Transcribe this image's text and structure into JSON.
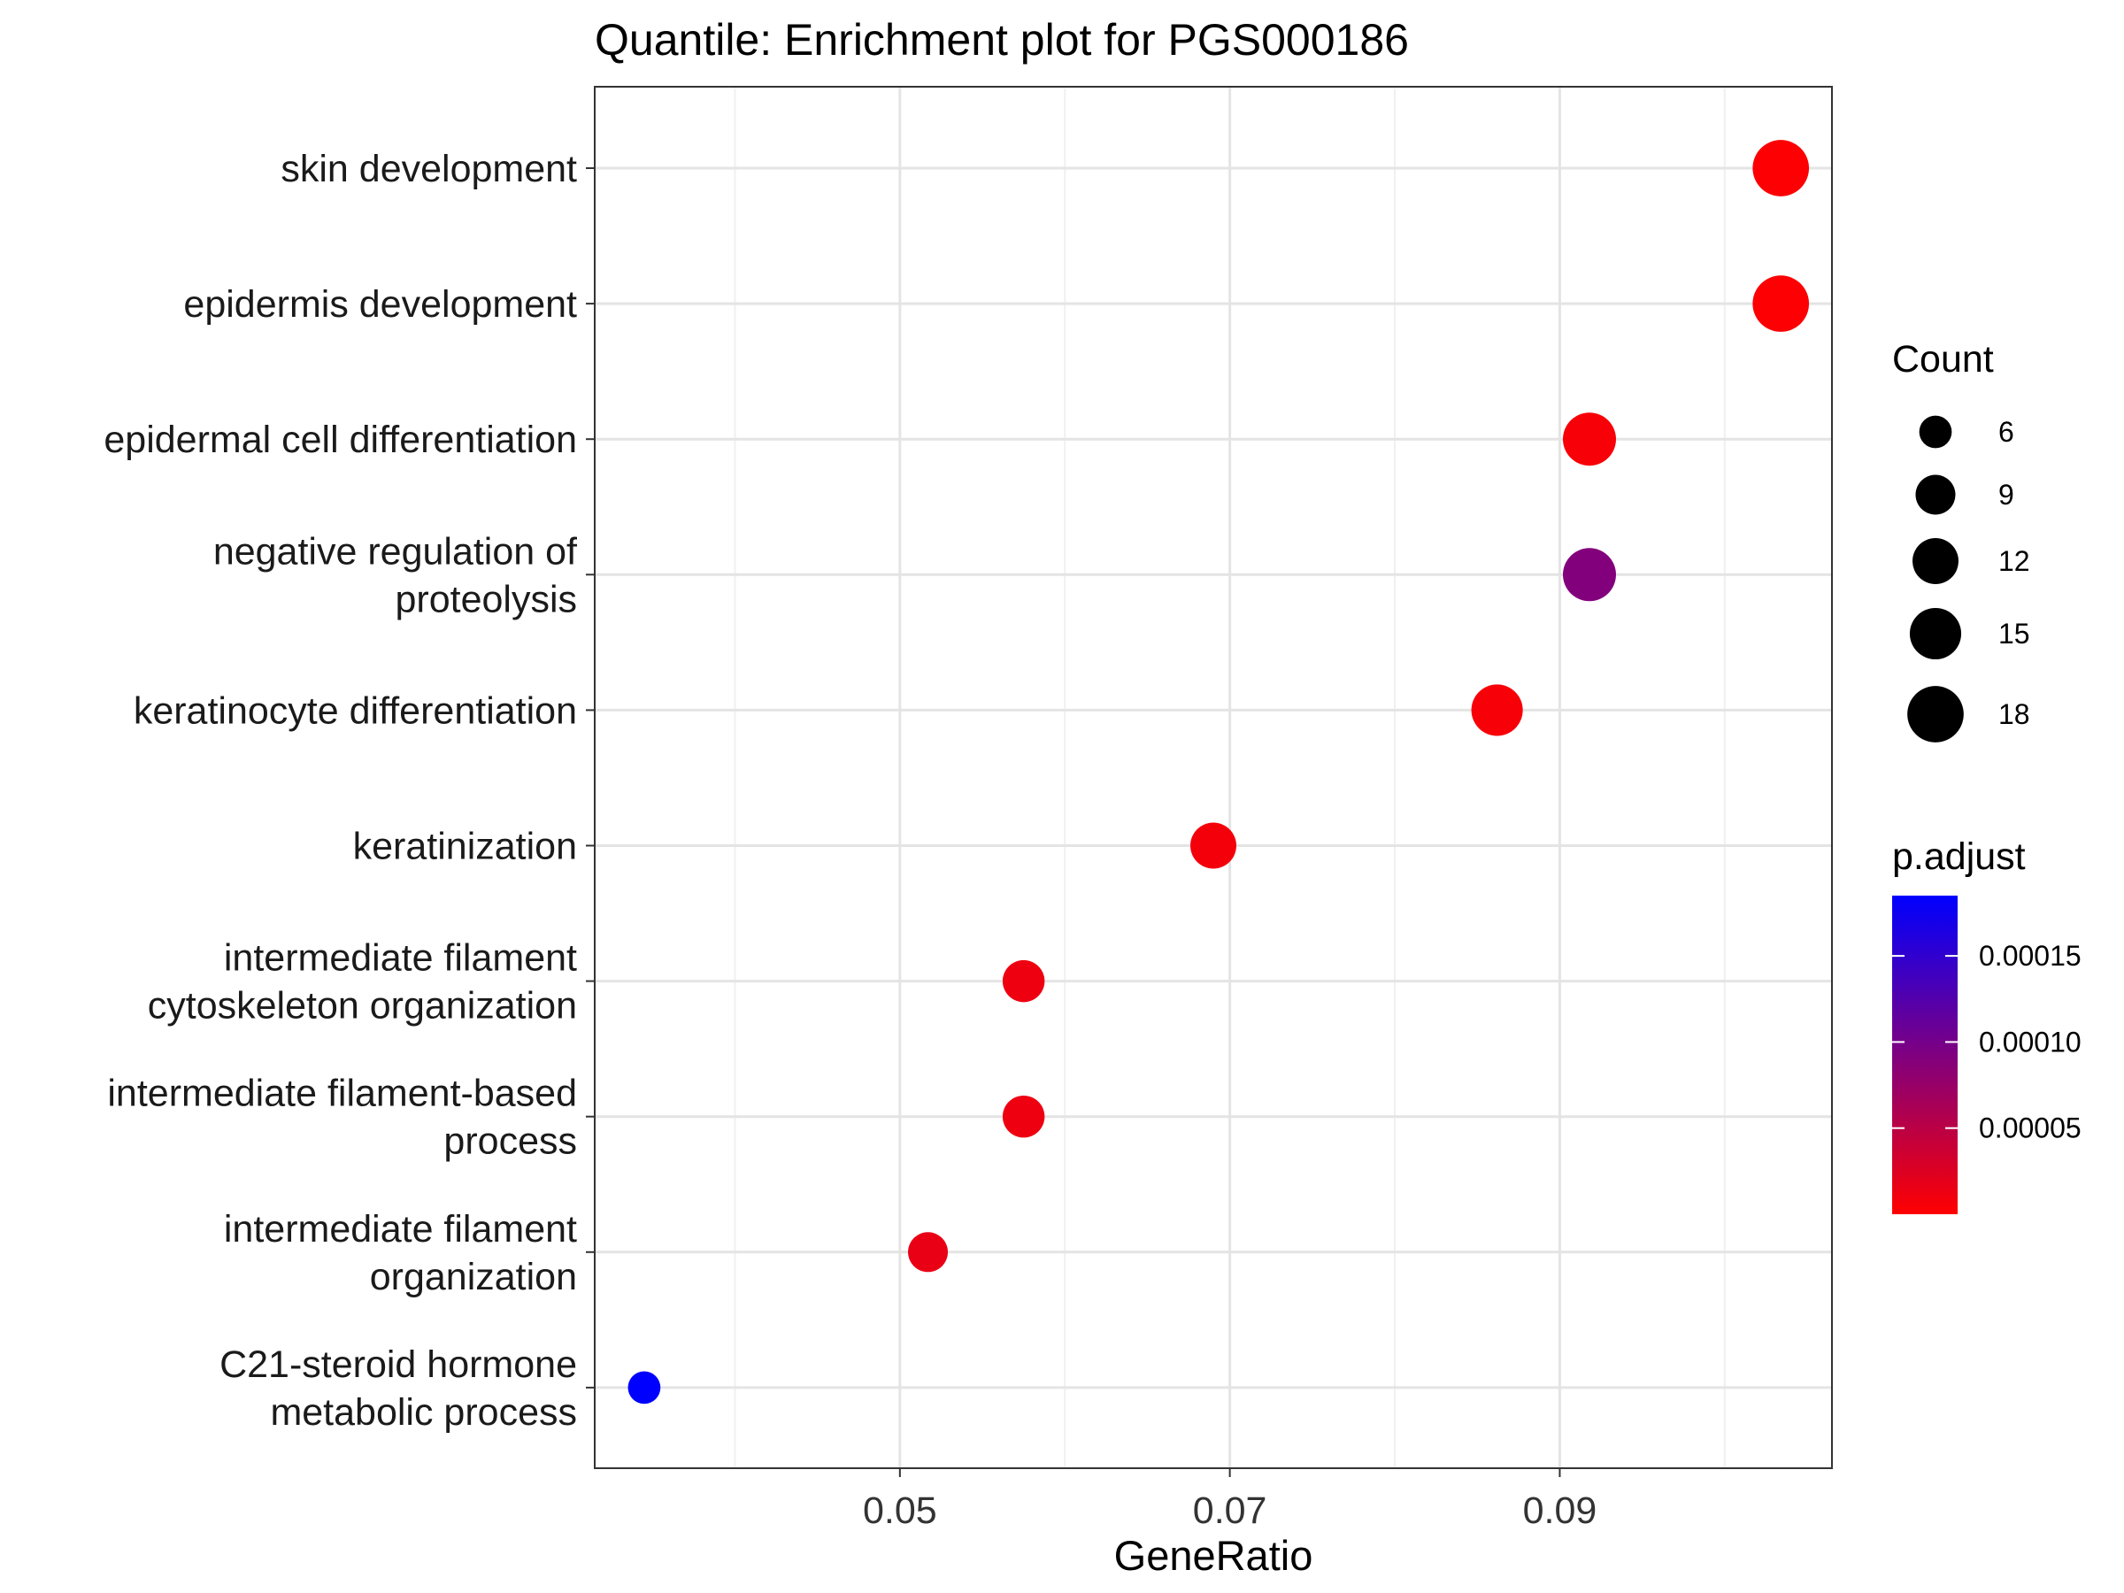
{
  "chart_data": {
    "type": "scatter",
    "title": "Quantile: Enrichment plot for PGS000186",
    "xlabel": "GeneRatio",
    "ylabel": "",
    "xlim": [
      0.0315,
      0.1065
    ],
    "x_ticks": [
      0.05,
      0.07,
      0.09
    ],
    "x_tick_labels": [
      "0.05",
      "0.07",
      "0.09"
    ],
    "grid": true,
    "categories": [
      [
        "skin development"
      ],
      [
        "epidermis development"
      ],
      [
        "epidermal cell differentiation"
      ],
      [
        "negative regulation of",
        "proteolysis"
      ],
      [
        "keratinocyte differentiation"
      ],
      [
        "keratinization"
      ],
      [
        "intermediate filament",
        "cytoskeleton organization"
      ],
      [
        "intermediate filament-based",
        "process"
      ],
      [
        "intermediate filament",
        "organization"
      ],
      [
        "C21-steroid hormone",
        "metabolic process"
      ]
    ],
    "points": [
      {
        "x": 0.1034,
        "count": 18,
        "p_adjust": 2e-06
      },
      {
        "x": 0.1034,
        "count": 18,
        "p_adjust": 2e-06
      },
      {
        "x": 0.0918,
        "count": 16,
        "p_adjust": 5e-06
      },
      {
        "x": 0.0918,
        "count": 16,
        "p_adjust": 9e-05
      },
      {
        "x": 0.0862,
        "count": 15,
        "p_adjust": 5e-06
      },
      {
        "x": 0.069,
        "count": 12,
        "p_adjust": 8e-06
      },
      {
        "x": 0.0575,
        "count": 10,
        "p_adjust": 1.2e-05
      },
      {
        "x": 0.0575,
        "count": 10,
        "p_adjust": 1.2e-05
      },
      {
        "x": 0.0517,
        "count": 9,
        "p_adjust": 1.5e-05
      },
      {
        "x": 0.0345,
        "count": 6,
        "p_adjust": 0.000185
      }
    ],
    "size_legend": {
      "title": "Count",
      "values": [
        6,
        9,
        12,
        15,
        18
      ],
      "labels": [
        "6",
        "9",
        "12",
        "15",
        "18"
      ]
    },
    "color_legend": {
      "title": "p.adjust",
      "range": [
        0.0,
        0.000185
      ],
      "ticks": [
        5e-05,
        0.0001,
        0.00015
      ],
      "tick_labels": [
        "0.00005",
        "0.00010",
        "0.00015"
      ],
      "low_color": "#ff0000",
      "high_color": "#0000ff"
    },
    "legend_position": "right"
  }
}
